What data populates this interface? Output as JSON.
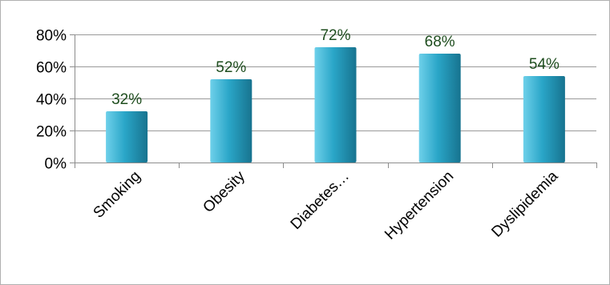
{
  "chart_data": {
    "type": "bar",
    "categories": [
      "Smoking",
      "Obesity",
      "Diabetes…",
      "Hypertension",
      "Dyslipidemia"
    ],
    "values": [
      32,
      52,
      72,
      68,
      54
    ],
    "data_labels": [
      "32%",
      "52%",
      "72%",
      "68%",
      "54%"
    ],
    "y_tick_labels": [
      "0%",
      "20%",
      "40%",
      "60%",
      "80%"
    ],
    "y_ticks": [
      0,
      20,
      40,
      60,
      80
    ],
    "ylim": [
      0,
      80
    ],
    "title": "",
    "xlabel": "",
    "ylabel": "",
    "grid": true,
    "legend": "none",
    "colors": {
      "bar_light": "#6ed0ea",
      "bar_mid": "#2aa6c8",
      "bar_dark": "#17738f",
      "data_label": "#1e4d1e"
    }
  }
}
